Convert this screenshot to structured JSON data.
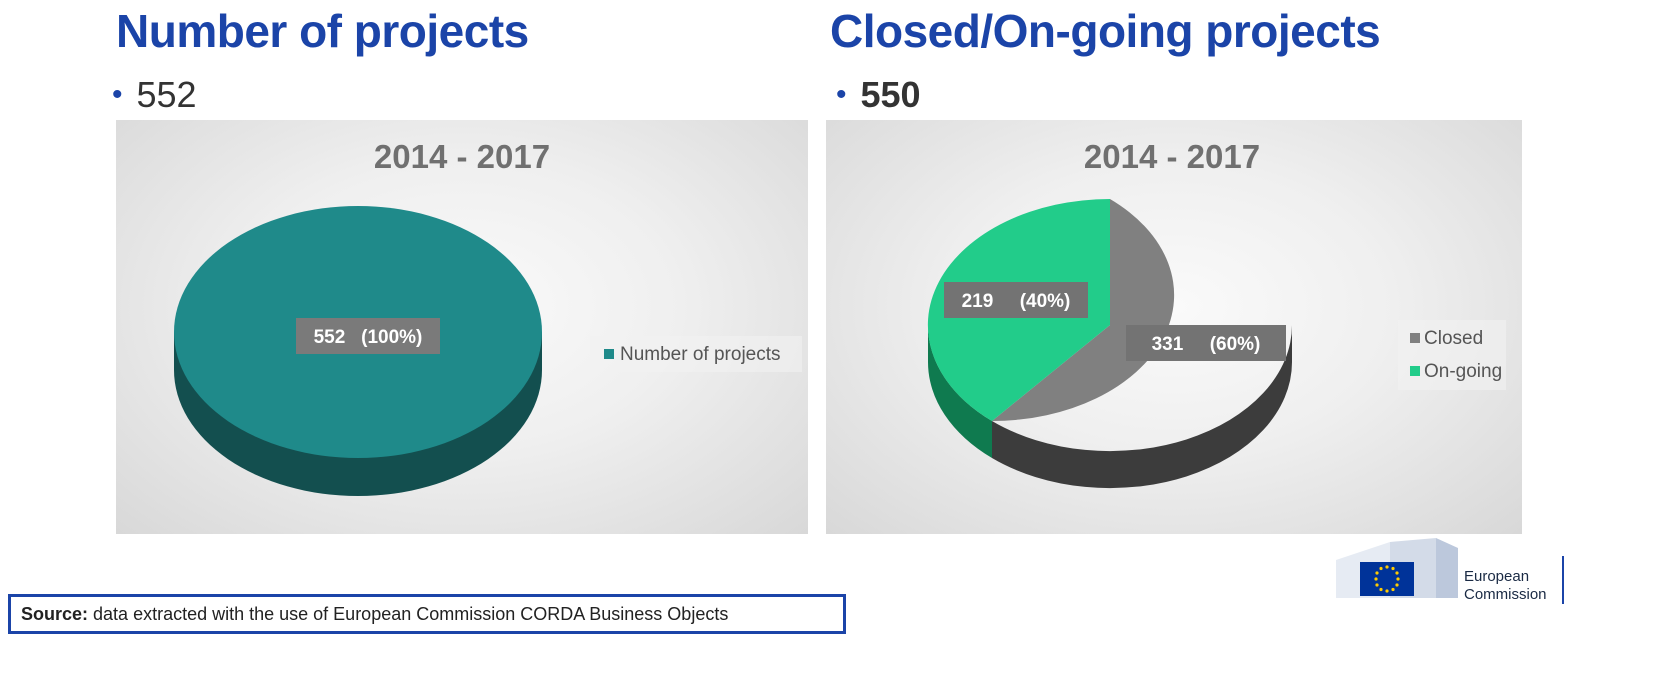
{
  "left": {
    "heading": "Number of projects",
    "bullet_value": "552",
    "chart_data": {
      "type": "pie",
      "title": "2014 - 2017",
      "slices": [
        {
          "label": "Number of projects",
          "value": 552,
          "percent": 100,
          "data_label": "552   (100%)",
          "color": "#1f8a8a"
        }
      ],
      "legend": "right"
    }
  },
  "right": {
    "heading": "Closed/On-going projects",
    "bullet_value": "550",
    "chart_data": {
      "type": "pie",
      "title": "2014 - 2017",
      "slices": [
        {
          "label": "Closed",
          "value": 331,
          "percent": 60,
          "data_label": "331     (60%)",
          "color": "#808080"
        },
        {
          "label": "On-going",
          "value": 219,
          "percent": 40,
          "data_label": "219     (40%)",
          "color": "#22cc8a"
        }
      ],
      "legend": "right"
    }
  },
  "source": {
    "label": "Source:",
    "text": " data extracted with the use of European Commission CORDA Business Objects"
  },
  "logo": {
    "line1": "European",
    "line2": "Commission"
  }
}
